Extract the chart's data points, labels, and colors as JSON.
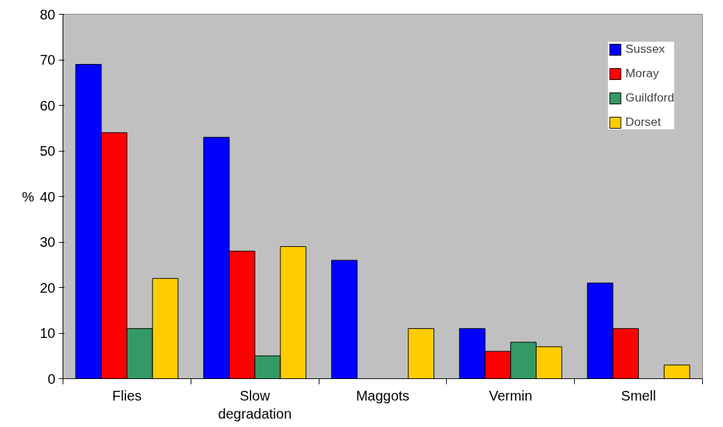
{
  "chart_data": {
    "type": "bar",
    "ylabel": "%",
    "categories": [
      "Flies",
      "Slow degradation",
      "Maggots",
      "Vermin",
      "Smell"
    ],
    "series": [
      {
        "name": "Sussex",
        "color": "#0000ff",
        "values": [
          69,
          53,
          26,
          11,
          21
        ]
      },
      {
        "name": "Moray",
        "color": "#ff0000",
        "values": [
          54,
          28,
          null,
          6,
          11
        ]
      },
      {
        "name": "Guildford",
        "color": "#339966",
        "values": [
          11,
          5,
          null,
          8,
          null
        ]
      },
      {
        "name": "Dorset",
        "color": "#ffcc00",
        "values": [
          22,
          29,
          11,
          7,
          3
        ]
      }
    ],
    "ylim": [
      0,
      80
    ],
    "yticks": [
      0,
      10,
      20,
      30,
      40,
      50,
      60,
      70,
      80
    ],
    "grid": false,
    "legend": "top right"
  }
}
